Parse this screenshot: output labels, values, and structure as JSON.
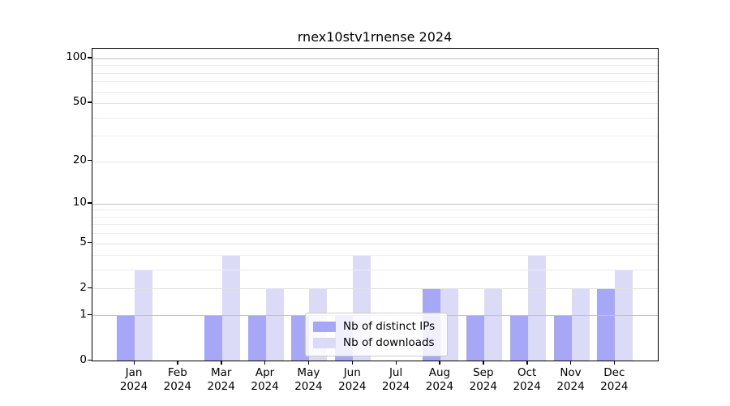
{
  "figure": {
    "title": "rnex10stv1rnense 2024",
    "background": "#ffffff"
  },
  "chart_data": {
    "type": "bar",
    "title": "rnex10stv1rnense 2024",
    "x_months": [
      "Jan",
      "Feb",
      "Mar",
      "Apr",
      "May",
      "Jun",
      "Jul",
      "Aug",
      "Sep",
      "Oct",
      "Nov",
      "Dec"
    ],
    "x_year": "2024",
    "series": [
      {
        "name": "Nb of distinct IPs",
        "color": "#a7a7f7",
        "values": [
          1,
          0,
          1,
          1,
          1,
          1,
          0,
          2,
          1,
          1,
          1,
          2
        ]
      },
      {
        "name": "Nb of downloads",
        "color": "#dbdbf8",
        "values": [
          3,
          0,
          4,
          2,
          2,
          4,
          0,
          2,
          2,
          4,
          2,
          3
        ]
      }
    ],
    "yscale": "log1p",
    "ylim": [
      0,
      116
    ],
    "yticks_labeled": [
      0,
      1,
      2,
      5,
      10,
      20,
      50,
      100
    ],
    "ygrid_major": [
      1,
      10,
      100
    ],
    "ygrid_minor_labeled": [
      2,
      5,
      20,
      50
    ],
    "ygrid_minor": [
      3,
      4,
      6,
      7,
      8,
      9,
      30,
      40,
      60,
      70,
      80,
      90
    ],
    "grid": true,
    "legend_position": "lower center",
    "colors": {
      "grid_major": "#c2c2c2",
      "grid_minor_labeled": "#e2e2e2",
      "grid_minor": "#ededed",
      "spine": "#000000",
      "text": "#000000"
    }
  }
}
